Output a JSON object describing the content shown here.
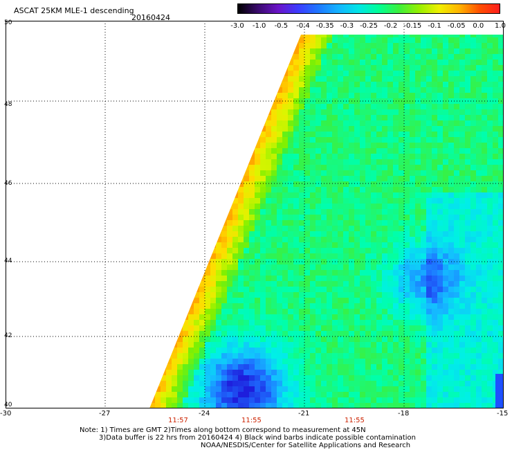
{
  "header": {
    "title": "ASCAT 25KM MLE-1 descending",
    "date": "20160424"
  },
  "colorbar": {
    "ticks": [
      "-3.0",
      "-1.0",
      "-0.5",
      "-0.4",
      "-0.35",
      "-0.3",
      "-0.25",
      "-0.2",
      "-0.15",
      "-0.1",
      "-0.05",
      "0.0",
      "1.0"
    ],
    "colors": [
      "#000000",
      "#3a0a6e",
      "#6a14c8",
      "#3c3cff",
      "#1e78ff",
      "#14b4ff",
      "#00e6e6",
      "#00ff96",
      "#3cf03c",
      "#96f000",
      "#f0f000",
      "#ffb400",
      "#ff5000",
      "#ff1e1e"
    ]
  },
  "map": {
    "lat_labels": [
      "50",
      "48",
      "46",
      "44",
      "42",
      "40"
    ],
    "lon_labels": [
      "-30",
      "-27",
      "-24",
      "-21",
      "-18",
      "-15"
    ],
    "time_labels": [
      "11:57",
      "11:55",
      "11:55"
    ]
  },
  "footer": {
    "note_line1": "Note: 1) Times are GMT 2)Times along bottom correspond to measurement at 45N",
    "note_line2": "3)Data buffer is 22 hrs from 20160424 4) Black wind barbs indicate possible contamination",
    "credit": "NOAA/NESDIS/Center for Satellite Applications and Research"
  }
}
